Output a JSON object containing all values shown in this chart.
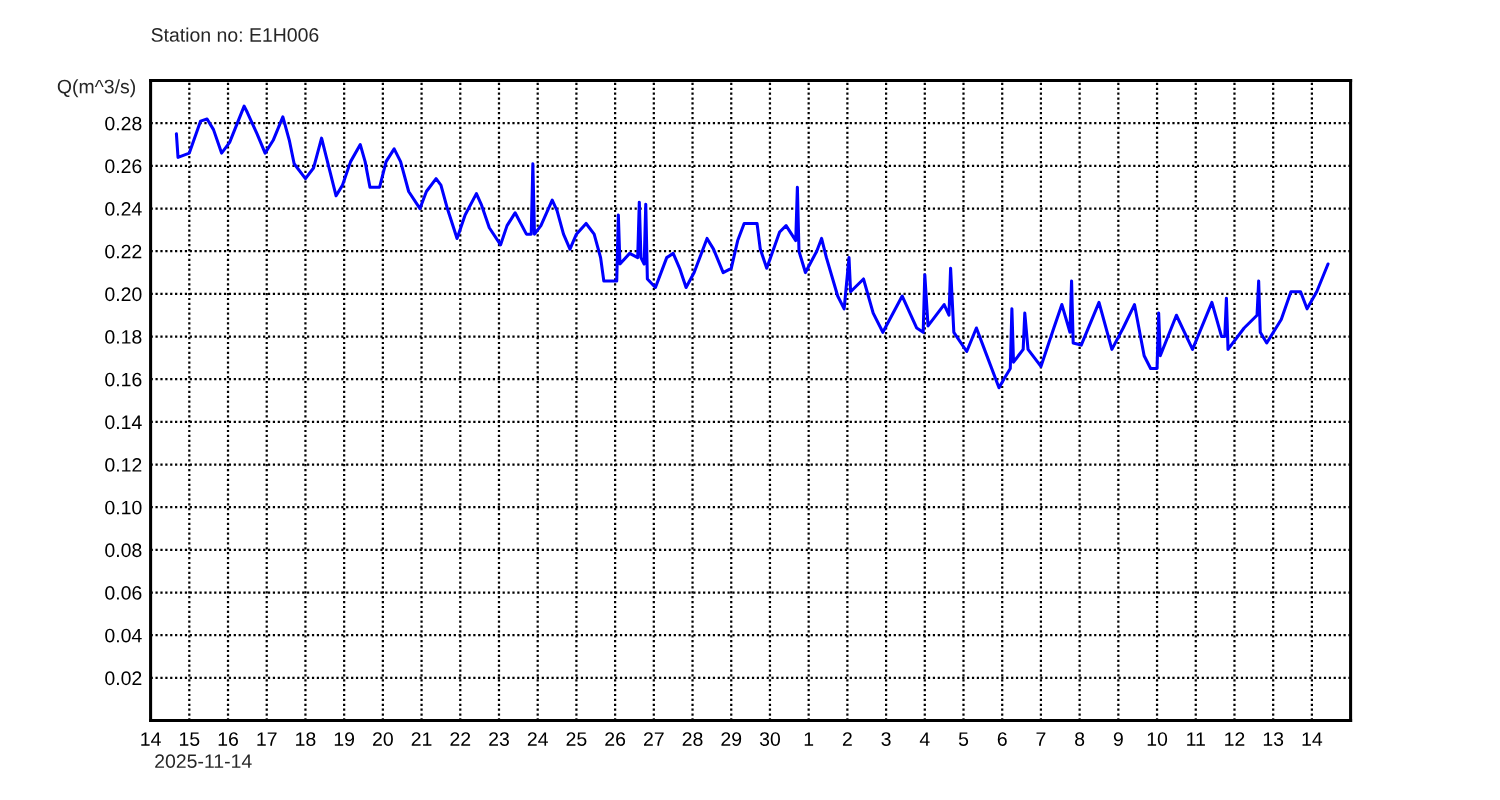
{
  "chart_data": {
    "type": "line",
    "title": "Station no: E1H006",
    "ylabel": "Q(m^3/s)",
    "annotations": [
      "2025-11-14"
    ],
    "x": [
      "2025-11-14T16:00",
      "2025-11-14T17:00",
      "2025-11-15T00:00",
      "2025-11-15T07:00",
      "2025-11-15T11:00",
      "2025-11-15T15:00",
      "2025-11-15T20:00",
      "2025-11-16T01:00",
      "2025-11-16T10:00",
      "2025-11-16T12:00",
      "2025-11-16T18:00",
      "2025-11-16T23:00",
      "2025-11-17T04:00",
      "2025-11-17T10:00",
      "2025-11-17T14:00",
      "2025-11-17T17:00",
      "2025-11-18T00:00",
      "2025-11-18T05:00",
      "2025-11-18T10:00",
      "2025-11-18T13:00",
      "2025-11-18T19:00",
      "2025-11-18T23:00",
      "2025-11-19T04:00",
      "2025-11-19T10:00",
      "2025-11-19T13:00",
      "2025-11-19T16:00",
      "2025-11-19T22:00",
      "2025-11-20T02:00",
      "2025-11-20T07:00",
      "2025-11-20T11:00",
      "2025-11-20T16:00",
      "2025-11-20T23:00",
      "2025-11-21T03:00",
      "2025-11-21T09:00",
      "2025-11-21T12:00",
      "2025-11-21T16:00",
      "2025-11-21T22:00",
      "2025-11-22T03:00",
      "2025-11-22T10:00",
      "2025-11-22T13:00",
      "2025-11-22T18:00",
      "2025-11-23T01:00",
      "2025-11-23T05:00",
      "2025-11-23T10:00",
      "2025-11-23T17:00",
      "2025-11-23T20:00",
      "2025-11-23T21:00",
      "2025-11-23T22:00",
      "2025-11-24T02:00",
      "2025-11-24T09:00",
      "2025-11-24T12:00",
      "2025-11-24T16:00",
      "2025-11-24T20:00",
      "2025-11-25T00:00",
      "2025-11-25T06:00",
      "2025-11-25T11:00",
      "2025-11-25T15:00",
      "2025-11-25T17:00",
      "2025-11-26T01:00",
      "2025-11-26T02:00",
      "2025-11-26T03:00",
      "2025-11-26T09:00",
      "2025-11-26T14:00",
      "2025-11-26T15:00",
      "2025-11-26T16:00",
      "2025-11-26T18:00",
      "2025-11-26T19:00",
      "2025-11-26T20:00",
      "2025-11-27T01:00",
      "2025-11-27T08:00",
      "2025-11-27T12:00",
      "2025-11-27T16:00",
      "2025-11-27T20:00",
      "2025-11-28T01:00",
      "2025-11-28T09:00",
      "2025-11-28T13:00",
      "2025-11-28T19:00",
      "2025-11-29T00:00",
      "2025-11-29T04:00",
      "2025-11-29T08:00",
      "2025-11-29T16:00",
      "2025-11-29T18:00",
      "2025-11-29T22:00",
      "2025-11-30T06:00",
      "2025-11-30T10:00",
      "2025-11-30T16:00",
      "2025-11-30T17:00",
      "2025-11-30T18:00",
      "2025-11-30T22:00",
      "2025-12-01T05:00",
      "2025-12-01T08:00",
      "2025-12-01T11:00",
      "2025-12-01T18:00",
      "2025-12-01T22:00",
      "2025-12-02T01:00",
      "2025-12-02T02:00",
      "2025-12-02T10:00",
      "2025-12-02T16:00",
      "2025-12-02T22:00",
      "2025-12-03T10:00",
      "2025-12-03T19:00",
      "2025-12-03T23:00",
      "2025-12-04T00:00",
      "2025-12-04T02:00",
      "2025-12-04T12:00",
      "2025-12-04T15:00",
      "2025-12-04T16:00",
      "2025-12-04T18:00",
      "2025-12-05T02:00",
      "2025-12-05T08:00",
      "2025-12-05T13:00",
      "2025-12-05T22:00",
      "2025-12-06T01:00",
      "2025-12-06T05:00",
      "2025-12-06T06:00",
      "2025-12-06T07:00",
      "2025-12-06T13:00",
      "2025-12-06T14:00",
      "2025-12-06T16:00",
      "2025-12-07T00:00",
      "2025-12-07T08:00",
      "2025-12-07T13:00",
      "2025-12-07T18:00",
      "2025-12-07T19:00",
      "2025-12-07T20:00",
      "2025-12-08T01:00",
      "2025-12-08T12:00",
      "2025-12-08T20:00",
      "2025-12-09T03:00",
      "2025-12-09T10:00",
      "2025-12-09T16:00",
      "2025-12-09T20:00",
      "2025-12-10T00:00",
      "2025-12-10T01:00",
      "2025-12-10T02:00",
      "2025-12-10T12:00",
      "2025-12-10T22:00",
      "2025-12-11T10:00",
      "2025-12-11T16:00",
      "2025-12-11T18:00",
      "2025-12-11T19:00",
      "2025-12-11T20:00",
      "2025-12-12T06:00",
      "2025-12-12T14:00",
      "2025-12-12T15:00",
      "2025-12-12T16:00",
      "2025-12-12T20:00",
      "2025-12-13T05:00",
      "2025-12-13T11:00",
      "2025-12-13T17:00",
      "2025-12-13T21:00",
      "2025-12-14T03:00",
      "2025-12-14T10:00"
    ],
    "series": [
      {
        "color": "#0000ff",
        "values": [
          0.275,
          0.264,
          0.266,
          0.281,
          0.282,
          0.277,
          0.266,
          0.271,
          0.288,
          0.285,
          0.275,
          0.266,
          0.272,
          0.283,
          0.272,
          0.261,
          0.254,
          0.259,
          0.273,
          0.264,
          0.246,
          0.251,
          0.262,
          0.27,
          0.262,
          0.25,
          0.25,
          0.262,
          0.268,
          0.262,
          0.248,
          0.24,
          0.248,
          0.254,
          0.251,
          0.24,
          0.226,
          0.237,
          0.247,
          0.242,
          0.231,
          0.223,
          0.232,
          0.238,
          0.228,
          0.228,
          0.261,
          0.228,
          0.232,
          0.244,
          0.239,
          0.228,
          0.221,
          0.228,
          0.233,
          0.228,
          0.217,
          0.206,
          0.206,
          0.237,
          0.214,
          0.219,
          0.217,
          0.243,
          0.217,
          0.214,
          0.242,
          0.207,
          0.203,
          0.217,
          0.219,
          0.212,
          0.203,
          0.21,
          0.226,
          0.221,
          0.21,
          0.212,
          0.225,
          0.233,
          0.233,
          0.221,
          0.212,
          0.229,
          0.232,
          0.225,
          0.25,
          0.22,
          0.21,
          0.22,
          0.226,
          0.217,
          0.199,
          0.193,
          0.217,
          0.201,
          0.207,
          0.191,
          0.182,
          0.199,
          0.184,
          0.182,
          0.209,
          0.185,
          0.195,
          0.19,
          0.212,
          0.182,
          0.173,
          0.184,
          0.174,
          0.156,
          0.16,
          0.165,
          0.193,
          0.168,
          0.174,
          0.191,
          0.174,
          0.166,
          0.184,
          0.195,
          0.182,
          0.206,
          0.177,
          0.176,
          0.196,
          0.174,
          0.184,
          0.195,
          0.171,
          0.165,
          0.165,
          0.191,
          0.171,
          0.19,
          0.174,
          0.196,
          0.18,
          0.18,
          0.198,
          0.174,
          0.184,
          0.19,
          0.206,
          0.182,
          0.177,
          0.188,
          0.201,
          0.201,
          0.193,
          0.201,
          0.214
        ]
      }
    ],
    "xlim": [
      "2025-11-14",
      "2025-12-15"
    ],
    "xticks": [
      {
        "value": "2025-11-14",
        "label": "14"
      },
      {
        "value": "2025-11-15",
        "label": "15"
      },
      {
        "value": "2025-11-16",
        "label": "16"
      },
      {
        "value": "2025-11-17",
        "label": "17"
      },
      {
        "value": "2025-11-18",
        "label": "18"
      },
      {
        "value": "2025-11-19",
        "label": "19"
      },
      {
        "value": "2025-11-20",
        "label": "20"
      },
      {
        "value": "2025-11-21",
        "label": "21"
      },
      {
        "value": "2025-11-22",
        "label": "22"
      },
      {
        "value": "2025-11-23",
        "label": "23"
      },
      {
        "value": "2025-11-24",
        "label": "24"
      },
      {
        "value": "2025-11-25",
        "label": "25"
      },
      {
        "value": "2025-11-26",
        "label": "26"
      },
      {
        "value": "2025-11-27",
        "label": "27"
      },
      {
        "value": "2025-11-28",
        "label": "28"
      },
      {
        "value": "2025-11-29",
        "label": "29"
      },
      {
        "value": "2025-11-30",
        "label": "30"
      },
      {
        "value": "2025-12-01",
        "label": "1"
      },
      {
        "value": "2025-12-02",
        "label": "2"
      },
      {
        "value": "2025-12-03",
        "label": "3"
      },
      {
        "value": "2025-12-04",
        "label": "4"
      },
      {
        "value": "2025-12-05",
        "label": "5"
      },
      {
        "value": "2025-12-06",
        "label": "6"
      },
      {
        "value": "2025-12-07",
        "label": "7"
      },
      {
        "value": "2025-12-08",
        "label": "8"
      },
      {
        "value": "2025-12-09",
        "label": "9"
      },
      {
        "value": "2025-12-10",
        "label": "10"
      },
      {
        "value": "2025-12-11",
        "label": "11"
      },
      {
        "value": "2025-12-12",
        "label": "12"
      },
      {
        "value": "2025-12-13",
        "label": "13"
      },
      {
        "value": "2025-12-14",
        "label": "14"
      }
    ],
    "ylim": [
      0,
      0.3
    ],
    "yticks": [
      0.02,
      0.04,
      0.06,
      0.08,
      {
        "value": 0.1,
        "label": "0.10"
      },
      0.12,
      0.14,
      0.16,
      0.18,
      {
        "value": 0.2,
        "label": "0.20"
      },
      0.22,
      0.24,
      0.26,
      0.28
    ],
    "grid": true
  }
}
